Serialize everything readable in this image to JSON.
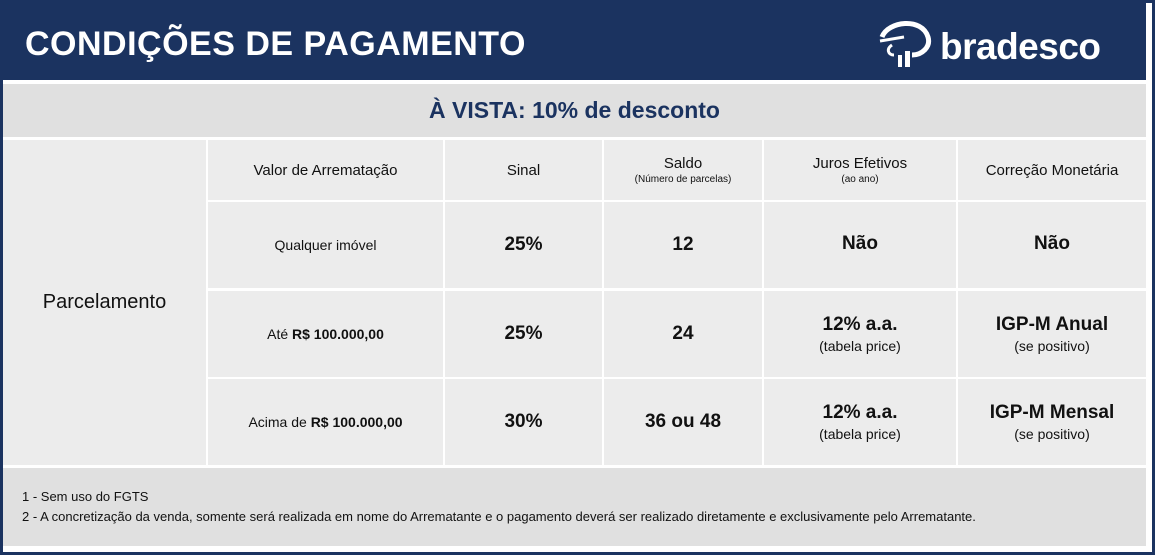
{
  "header": {
    "title": "CONDIÇÕES DE PAGAMENTO",
    "logo_text": "bradesco"
  },
  "banner": "À VISTA: 10% de desconto",
  "table": {
    "row_label": "Parcelamento",
    "columns": [
      {
        "label": "Valor de Arrematação",
        "sub": ""
      },
      {
        "label": "Sinal",
        "sub": ""
      },
      {
        "label": "Saldo",
        "sub": "(Número de parcelas)"
      },
      {
        "label": "Juros Efetivos",
        "sub": "(ao ano)"
      },
      {
        "label": "Correção Monetária",
        "sub": ""
      }
    ],
    "rows": [
      {
        "valor_prefix": "Qualquer imóvel",
        "valor_amount": "",
        "sinal": "25%",
        "saldo": "12",
        "juros": "Não",
        "juros_sub": "",
        "correcao": "Não",
        "correcao_sub": ""
      },
      {
        "valor_prefix": "Até ",
        "valor_amount": "R$ 100.000,00",
        "sinal": "25%",
        "saldo": "24",
        "juros": "12% a.a.",
        "juros_sub": "(tabela price)",
        "correcao": "IGP-M Anual",
        "correcao_sub": "(se positivo)"
      },
      {
        "valor_prefix": "Acima de ",
        "valor_amount": "R$ 100.000,00",
        "sinal": "30%",
        "saldo": "36 ou 48",
        "juros": "12% a.a.",
        "juros_sub": "(tabela price)",
        "correcao": "IGP-M Mensal",
        "correcao_sub": "(se positivo)"
      }
    ]
  },
  "footer": {
    "notes": [
      "1 - Sem uso do FGTS",
      "2 - A concretização da venda, somente será realizada em nome do Arrematante e o pagamento deverá ser realizado diretamente e exclusivamente pelo Arrematante."
    ]
  },
  "colors": {
    "navy": "#1b3360",
    "band": "#e0e0e0",
    "cell": "#ececec"
  }
}
